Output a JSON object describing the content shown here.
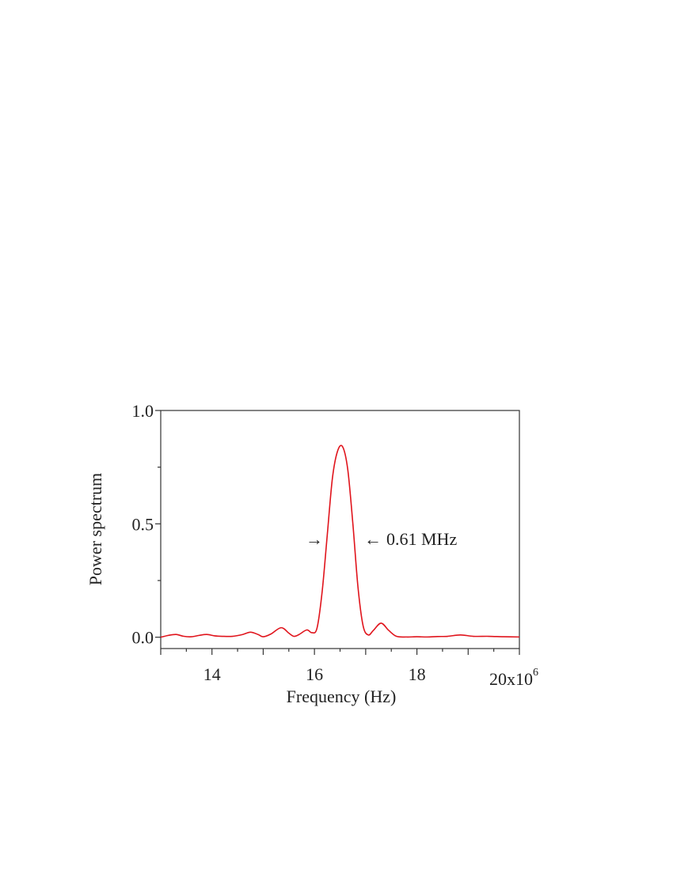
{
  "chart_data": {
    "type": "line",
    "title": "",
    "xlabel": "Frequency (Hz)",
    "ylabel": "Power spectrum",
    "xlim": [
      13.0,
      20.0
    ],
    "ylim": [
      -0.05,
      1.0
    ],
    "x_scale_label": "x10",
    "x_scale_exponent": "6",
    "x_unit_multiplier": 1000000,
    "x_ticks_major": [
      14,
      16,
      18,
      20
    ],
    "x_tick_labels": [
      "14",
      "16",
      "18",
      "20"
    ],
    "y_ticks_major": [
      0.0,
      0.5,
      1.0
    ],
    "y_tick_labels": [
      "0.0",
      "0.5",
      "1.0"
    ],
    "grid": false,
    "annotation": {
      "arrow_right": "→",
      "arrow_left": "←",
      "text": "0.61 MHz",
      "fwhm_mhz": 0.61,
      "level": 0.42
    },
    "series": [
      {
        "color": "#e0141c",
        "x": [
          13.0,
          13.15,
          13.3,
          13.45,
          13.6,
          13.75,
          13.9,
          14.05,
          14.2,
          14.4,
          14.6,
          14.75,
          14.9,
          15.0,
          15.15,
          15.35,
          15.5,
          15.6,
          15.7,
          15.85,
          15.95,
          16.05,
          16.15,
          16.25,
          16.35,
          16.45,
          16.55,
          16.65,
          16.75,
          16.85,
          16.95,
          17.05,
          17.15,
          17.3,
          17.45,
          17.6,
          17.8,
          18.0,
          18.2,
          18.4,
          18.6,
          18.85,
          19.1,
          19.4,
          19.7,
          20.0
        ],
        "y": [
          0.0,
          0.008,
          0.012,
          0.004,
          0.002,
          0.008,
          0.012,
          0.006,
          0.004,
          0.004,
          0.012,
          0.022,
          0.012,
          0.002,
          0.014,
          0.042,
          0.018,
          0.004,
          0.012,
          0.032,
          0.02,
          0.04,
          0.2,
          0.45,
          0.7,
          0.82,
          0.84,
          0.74,
          0.5,
          0.22,
          0.05,
          0.01,
          0.03,
          0.062,
          0.03,
          0.004,
          0.001,
          0.002,
          0.001,
          0.003,
          0.004,
          0.01,
          0.004,
          0.004,
          0.002,
          0.001
        ]
      }
    ]
  }
}
